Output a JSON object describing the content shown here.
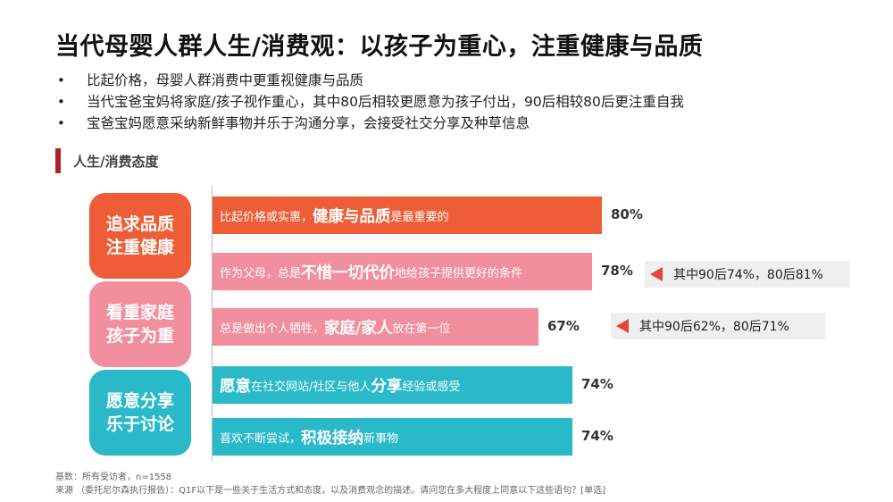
{
  "title": "当代母婴人群人生/消费观：以孩子为重心，注重健康与品质",
  "bullets": [
    "比起价格，母婴人群消费中更重视健康与品质",
    "当代宝爸宝妈将家庭/孩子视作重心，其中80后相较更愿意为孩子付出，90后相较80后更注重自我",
    "宝爸宝妈愿意采纳新鲜事物并乐于沟通分享，会接受社交分享及种草信息"
  ],
  "bullet_symbol": "•",
  "section_label": "人生/消费态度",
  "categories": [
    {
      "line1": "追求品质",
      "line2": "注重健康",
      "color": "#ee5d38"
    },
    {
      "line1": "看重家庭",
      "line2": "孩子为重",
      "color": "#f28f9f"
    },
    {
      "line1": "愿意分享",
      "line2": "乐于讨论",
      "color": "#29b9c9"
    }
  ],
  "chart_data": {
    "type": "bar",
    "orientation": "horizontal",
    "categories": [
      "比起价格或实惠，健康与品质是最重要的",
      "作为父母，总是不惜一切代价地给孩子提供更好的条件",
      "总是做出个人牺牲，家庭/家人放在第一位",
      "愿意在社交网站/社区与他人分享经验或感受",
      "喜欢不断尝试，积极接纳新事物"
    ],
    "values": [
      80,
      78,
      67,
      74,
      74
    ],
    "value_labels": [
      "80%",
      "78%",
      "67%",
      "74%",
      "74%"
    ],
    "bar_labels": [
      {
        "pre": "比起价格或实惠，",
        "bold": "健康与品质",
        "post": "是最重要的"
      },
      {
        "pre": "作为父母，总是",
        "bold": "不惜一切代价",
        "post": "地给孩子提供更好的条件"
      },
      {
        "pre": "总是做出个人牺牲，",
        "bold": "家庭/家人",
        "post": "放在第一位"
      },
      {
        "pre": "",
        "bold": "愿意",
        "mid": "在社交网站/社区与他人",
        "bold2": "分享",
        "post": "经验或感受"
      },
      {
        "pre": "喜欢不断尝试，",
        "bold": "积极接纳",
        "post": "新事物"
      }
    ],
    "colors": [
      "#ee5d38",
      "#f28f9f",
      "#f28f9f",
      "#29b9c9",
      "#29b9c9"
    ],
    "group": [
      "追求品质 注重健康",
      "看重家庭 孩子为重",
      "看重家庭 孩子为重",
      "愿意分享 乐于讨论",
      "愿意分享 乐于讨论"
    ],
    "xlim": [
      0,
      100
    ],
    "annotations": [
      {
        "bar_index": 1,
        "text": "其中90后74%，80后81%"
      },
      {
        "bar_index": 2,
        "text": "其中90后62%，80后71%"
      }
    ]
  },
  "footer": {
    "base": "基数：所有受访者，n=1558",
    "source": "来源 （委托尼尔森执行报告）：Q1F以下是一些关于生活方式和态度，以及消费观念的描述。请问您在多大程度上同意以下这些语句？[单选]"
  }
}
